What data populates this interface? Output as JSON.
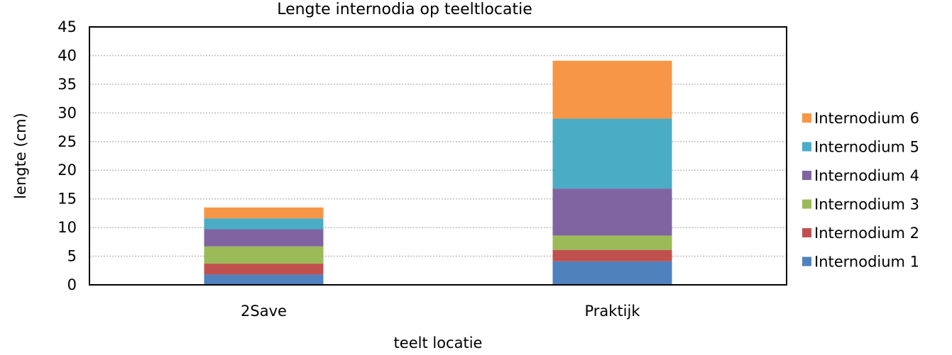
{
  "chart_data": {
    "type": "bar",
    "stacked": true,
    "title": "Lengte internodia op teeltlocatie",
    "xlabel": "teelt locatie",
    "ylabel": "lengte (cm)",
    "ylim": [
      0,
      45
    ],
    "yticks": [
      0,
      5,
      10,
      15,
      20,
      25,
      30,
      35,
      40,
      45
    ],
    "grid": true,
    "legend_position": "right",
    "categories": [
      "2Save",
      "Praktijk"
    ],
    "series": [
      {
        "name": "Internodium 1",
        "color": "#4f81bd",
        "values": [
          1.8,
          4.1
        ]
      },
      {
        "name": "Internodium 2",
        "color": "#c0504d",
        "values": [
          1.9,
          2.0
        ]
      },
      {
        "name": "Internodium 3",
        "color": "#9bbb59",
        "values": [
          3.0,
          2.5
        ]
      },
      {
        "name": "Internodium 4",
        "color": "#8064a2",
        "values": [
          3.0,
          8.2
        ]
      },
      {
        "name": "Internodium 5",
        "color": "#4bacc6",
        "values": [
          1.9,
          12.2
        ]
      },
      {
        "name": "Internodium 6",
        "color": "#f79646",
        "values": [
          1.9,
          10.1
        ]
      }
    ]
  }
}
